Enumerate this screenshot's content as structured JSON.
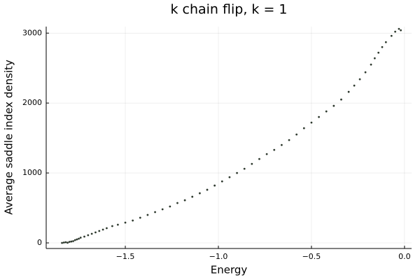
{
  "chart_data": {
    "type": "scatter",
    "title": "k chain flip, k = 1",
    "x_label": "Energy",
    "y_label": "Average saddle index density",
    "series": [
      {
        "color": "#2f3a2f",
        "x": [
          -1.84,
          -1.83,
          -1.82,
          -1.81,
          -1.8,
          -1.79,
          -1.78,
          -1.77,
          -1.76,
          -1.75,
          -1.74,
          -1.72,
          -1.7,
          -1.68,
          -1.66,
          -1.64,
          -1.62,
          -1.6,
          -1.57,
          -1.54,
          -1.5,
          -1.46,
          -1.42,
          -1.38,
          -1.34,
          -1.3,
          -1.26,
          -1.22,
          -1.18,
          -1.14,
          -1.1,
          -1.06,
          -1.02,
          -0.98,
          -0.94,
          -0.9,
          -0.86,
          -0.82,
          -0.78,
          -0.74,
          -0.7,
          -0.66,
          -0.62,
          -0.58,
          -0.54,
          -0.5,
          -0.46,
          -0.42,
          -0.38,
          -0.34,
          -0.3,
          -0.27,
          -0.24,
          -0.21,
          -0.18,
          -0.16,
          -0.14,
          -0.12,
          -0.1,
          -0.07,
          -0.05,
          -0.03,
          -0.02
        ],
        "values": [
          0,
          5,
          10,
          3,
          15,
          20,
          25,
          40,
          50,
          60,
          75,
          90,
          110,
          130,
          150,
          170,
          190,
          210,
          240,
          260,
          290,
          320,
          360,
          400,
          440,
          480,
          520,
          570,
          610,
          660,
          710,
          760,
          820,
          880,
          940,
          1000,
          1060,
          1130,
          1200,
          1270,
          1330,
          1400,
          1470,
          1550,
          1640,
          1720,
          1800,
          1880,
          1960,
          2050,
          2160,
          2250,
          2340,
          2440,
          2550,
          2640,
          2720,
          2800,
          2870,
          2960,
          3020,
          3060,
          3040
        ]
      }
    ],
    "xlim": [
      -1.925,
      0.038
    ],
    "ylim": [
      -80,
      3093
    ],
    "xticks": [
      {
        "value": -1.5,
        "label": "−1.5"
      },
      {
        "value": -1.0,
        "label": "−1.0"
      },
      {
        "value": -0.5,
        "label": "−0.5"
      },
      {
        "value": 0.0,
        "label": "0.0"
      }
    ],
    "yticks": [
      0,
      1000,
      2000,
      3000
    ],
    "grid": true
  }
}
